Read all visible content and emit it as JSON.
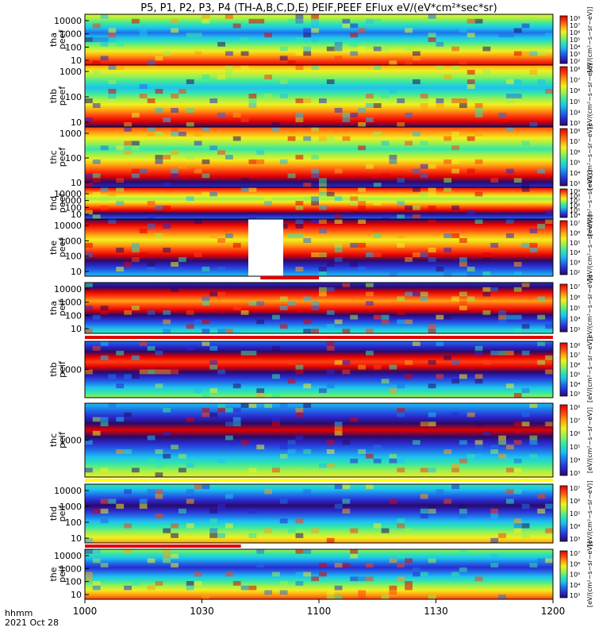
{
  "title": "P5, P1, P2, P3, P4 (TH-A,B,C,D,E) PEIF,PEEF EFlux eV/(eV*cm²*sec*sr)",
  "colors": {
    "rainbow": [
      "#2a0a6a",
      "#2a2ad0",
      "#1f70e8",
      "#1ec0f0",
      "#33e6a8",
      "#9af050",
      "#f0f020",
      "#ffa010",
      "#ff4010",
      "#e00000"
    ],
    "flag_red": "#e00000",
    "flag_yellow": "#ffff00",
    "axes": "#000000"
  },
  "time_axis": {
    "ticks": [
      "1000",
      "1030",
      "1100",
      "1130",
      "1200"
    ],
    "hhmm_label": "hhmm",
    "date_label": "2021 Oct 28"
  },
  "chart_data": {
    "type": "heatmap",
    "title": "P5, P1, P2, P3, P4 (TH-A,B,C,D,E) PEIF,PEEF EFlux eV/(eV*cm²*sec*sr)",
    "x": {
      "label": "hhmm",
      "range": [
        "10:00",
        "12:00"
      ],
      "ticks": [
        "1000",
        "1030",
        "1100",
        "1130",
        "1200"
      ]
    },
    "y_scale": "log",
    "panels": [
      {
        "id": "p1",
        "name": [
          "tha",
          "peef"
        ],
        "yticks": [
          "10",
          "100",
          "1000",
          "10000"
        ],
        "cbar_ticks": [
          "10²",
          "10³",
          "10⁴",
          "10⁵",
          "10⁶",
          "10⁷",
          "10⁸"
        ],
        "cbar_label": "[eV/(cm²−s−sr−eV)]",
        "gap_after": false,
        "flag": null
      },
      {
        "id": "p2",
        "name": [
          "thb",
          "peef"
        ],
        "yticks": [
          "10",
          "100",
          "1000"
        ],
        "cbar_ticks": [
          "10³",
          "10⁴",
          "10⁵",
          "10⁶",
          "10⁷",
          "10⁸"
        ],
        "cbar_label": "[eV/(cm²−s−sr−eV)]",
        "gap_after": false,
        "flag": null
      },
      {
        "id": "p3",
        "name": [
          "thc",
          "peef"
        ],
        "yticks": [
          "10",
          "100",
          "1000"
        ],
        "cbar_ticks": [
          "10³",
          "10⁴",
          "10⁵",
          "10⁶",
          "10⁷",
          "10⁸"
        ],
        "cbar_label": "[eV/(cm²−s−sr−eV)]",
        "gap_after": false,
        "flag": null
      },
      {
        "id": "p4",
        "name": [
          "thd",
          "peef"
        ],
        "yticks": [
          "10",
          "100",
          "1000",
          "10000"
        ],
        "cbar_ticks": [
          "10⁴",
          "10⁵",
          "10⁶",
          "10⁷",
          "10⁸",
          "10⁹"
        ],
        "cbar_label": "[eV/(cm²−s−sr−eV)]",
        "gap_after": false,
        "flag": null
      },
      {
        "id": "p5",
        "name": [
          "the",
          "peef"
        ],
        "yticks": [
          "10",
          "100",
          "1000",
          "10000"
        ],
        "cbar_ticks": [
          "10²",
          "10³",
          "10⁴",
          "10⁵",
          "10⁶",
          "10⁷"
        ],
        "cbar_label": "[eV/(cm²−s−sr−eV)]",
        "gap_after": true,
        "flag": {
          "color": "red",
          "start": "10:45",
          "end": "11:00"
        }
      },
      {
        "id": "p6",
        "name": [
          "tha",
          "peif"
        ],
        "yticks": [
          "10",
          "100",
          "1000",
          "10000"
        ],
        "cbar_ticks": [
          "10³",
          "10⁴",
          "10⁵",
          "10⁶",
          "10⁷"
        ],
        "cbar_label": "[eV/(cm²−s−sr−eV)]",
        "gap_after": true,
        "flag": {
          "color": "red",
          "start": "10:00",
          "end": "12:00"
        }
      },
      {
        "id": "p7",
        "name": [
          "thb",
          "peif"
        ],
        "yticks": [
          "1000"
        ],
        "cbar_ticks": [
          "10³",
          "10⁴",
          "10⁵",
          "10⁶",
          "10⁷",
          "10⁸"
        ],
        "cbar_label": "[eV/(cm²−s−sr−eV)]",
        "gap_after": true,
        "flag": null
      },
      {
        "id": "p8",
        "name": [
          "thc",
          "peif"
        ],
        "yticks": [
          "1000"
        ],
        "cbar_ticks": [
          "10³",
          "10⁴",
          "10⁵",
          "10⁶",
          "10⁷",
          "10⁸"
        ],
        "cbar_label": "[eV/(cm²−s−sr−eV)]",
        "gap_after": true,
        "flag": {
          "color": "yellow",
          "start": "10:00",
          "end": "12:00"
        }
      },
      {
        "id": "p9",
        "name": [
          "thd",
          "peif"
        ],
        "yticks": [
          "10",
          "100",
          "1000",
          "10000"
        ],
        "cbar_ticks": [
          "10³",
          "10⁴",
          "10⁵",
          "10⁶",
          "10⁷"
        ],
        "cbar_label": "[eV/(cm²−s−sr−eV)]",
        "gap_after": true,
        "flag": {
          "color": "red",
          "start": "10:00",
          "end": "10:40"
        }
      },
      {
        "id": "p10",
        "name": [
          "the",
          "peif"
        ],
        "yticks": [
          "10",
          "100",
          "1000",
          "10000"
        ],
        "cbar_ticks": [
          "10³",
          "10⁴",
          "10⁵",
          "10⁶",
          "10⁷"
        ],
        "cbar_label": "[eV/(cm²−s−sr−eV)]",
        "gap_after": false,
        "flag": null
      }
    ]
  }
}
